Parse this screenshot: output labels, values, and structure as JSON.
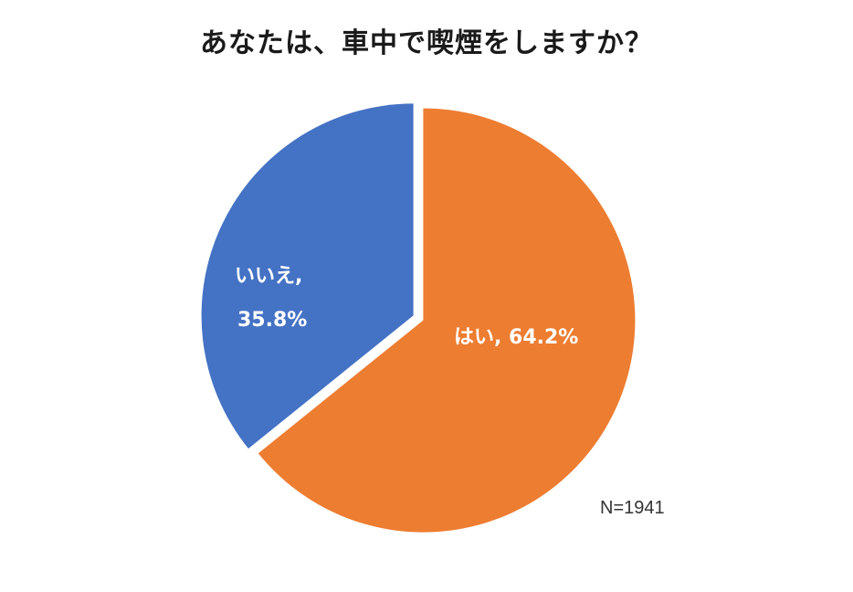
{
  "chart_data": {
    "type": "pie",
    "title": "あなたは、車中で喫煙をしますか？",
    "slices": [
      {
        "label": "はい",
        "value": 64.2,
        "display": "はい, 64.2%",
        "color": "#ED7D31"
      },
      {
        "label": "いいえ",
        "value": 35.8,
        "display_line1": "いいえ,",
        "display_line2": "35.8%",
        "color": "#4472C4"
      }
    ],
    "note": "N=1941"
  }
}
